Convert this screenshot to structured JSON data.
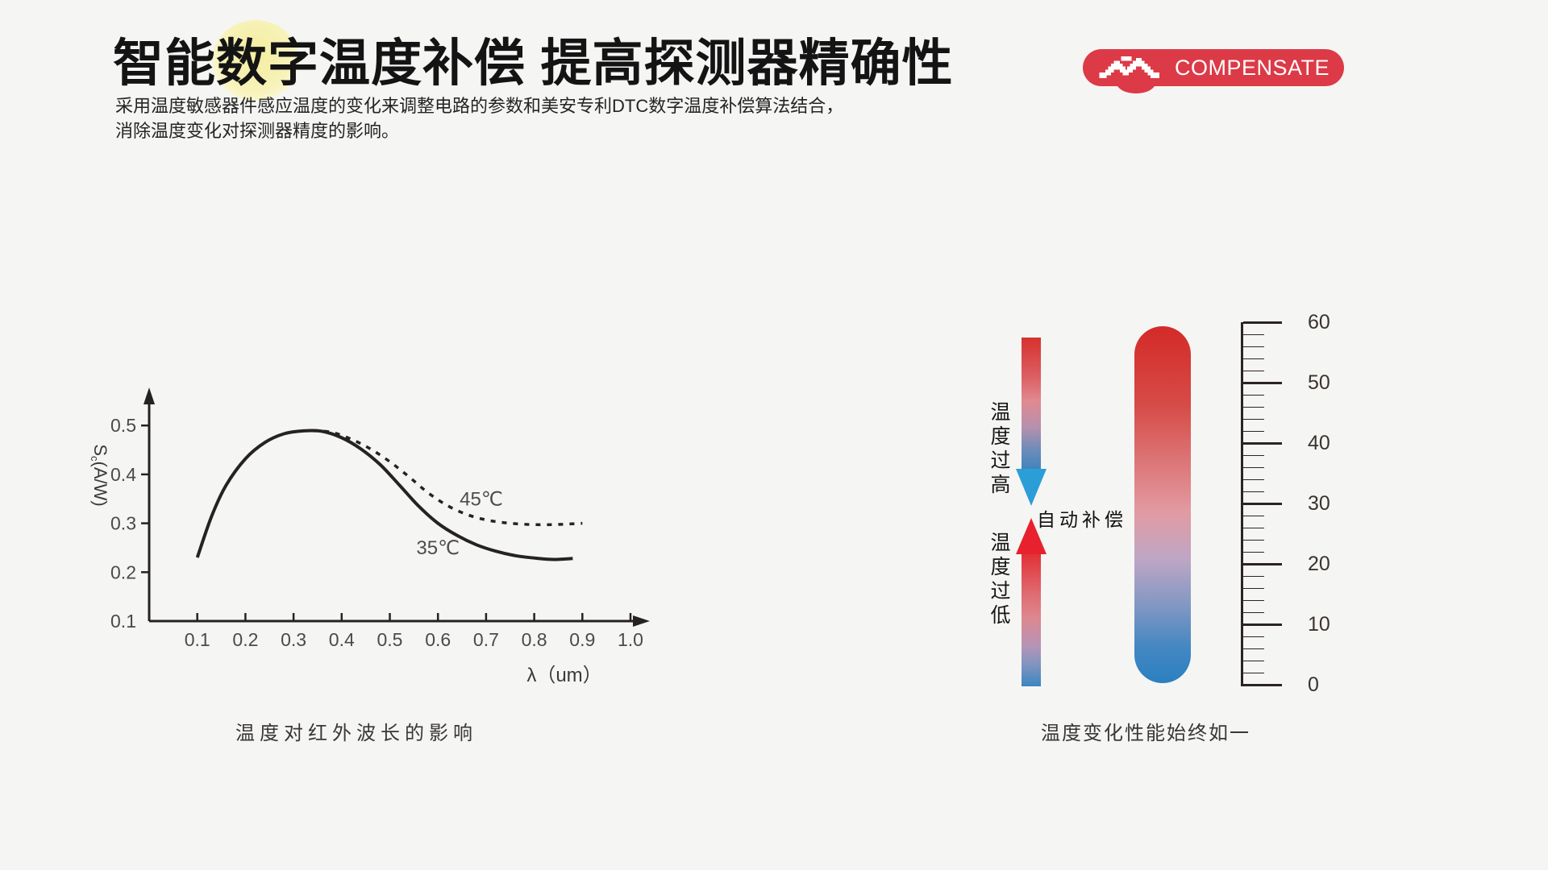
{
  "header": {
    "title_pre": "智能",
    "title_hl": "数字",
    "title_post": "温度补偿 提高探测器精确性",
    "subtitle_line1": "采用温度敏感器件感应温度的变化来调整电路的参数和美安专利DTC数字温度补偿算法结合，",
    "subtitle_line2": "消除温度变化对探测器精度的影响。",
    "badge": {
      "label": "COMPENSATE",
      "color": "#dc3a47",
      "icon": "pixel-wave"
    }
  },
  "chart_data": {
    "type": "line",
    "title": "温度对红外波长的影响",
    "xlabel": "λ（um）",
    "ylabel": "Sc(A/W)",
    "ylabel_sub": "c",
    "xlim": [
      0,
      1.05
    ],
    "ylim": [
      0.1,
      0.55
    ],
    "x_ticks": [
      "0.1",
      "0.2",
      "0.3",
      "0.4",
      "0.5",
      "0.6",
      "0.7",
      "0.8",
      "0.9",
      "1.0"
    ],
    "y_ticks": [
      "0.1",
      "0.2",
      "0.3",
      "0.4",
      "0.5"
    ],
    "axis_color": "#262223",
    "grid": "off",
    "series": [
      {
        "name": "35℃",
        "style": "solid",
        "label_at": [
          0.6,
          0.25
        ],
        "points": [
          [
            0.1,
            0.23
          ],
          [
            0.13,
            0.315
          ],
          [
            0.16,
            0.378
          ],
          [
            0.2,
            0.432
          ],
          [
            0.24,
            0.465
          ],
          [
            0.28,
            0.483
          ],
          [
            0.32,
            0.489
          ],
          [
            0.36,
            0.488
          ],
          [
            0.4,
            0.475
          ],
          [
            0.44,
            0.452
          ],
          [
            0.48,
            0.42
          ],
          [
            0.52,
            0.378
          ],
          [
            0.56,
            0.335
          ],
          [
            0.6,
            0.3
          ],
          [
            0.64,
            0.275
          ],
          [
            0.68,
            0.256
          ],
          [
            0.72,
            0.243
          ],
          [
            0.76,
            0.234
          ],
          [
            0.8,
            0.229
          ],
          [
            0.84,
            0.226
          ],
          [
            0.88,
            0.228
          ]
        ]
      },
      {
        "name": "45℃",
        "style": "dashed",
        "label_at": [
          0.69,
          0.35
        ],
        "points": [
          [
            0.34,
            0.49
          ],
          [
            0.38,
            0.486
          ],
          [
            0.42,
            0.472
          ],
          [
            0.46,
            0.452
          ],
          [
            0.5,
            0.426
          ],
          [
            0.54,
            0.395
          ],
          [
            0.58,
            0.362
          ],
          [
            0.62,
            0.336
          ],
          [
            0.66,
            0.318
          ],
          [
            0.7,
            0.307
          ],
          [
            0.74,
            0.301
          ],
          [
            0.78,
            0.298
          ],
          [
            0.82,
            0.297
          ],
          [
            0.86,
            0.298
          ],
          [
            0.9,
            0.3
          ]
        ]
      }
    ]
  },
  "thermometer": {
    "label_high": "温度过高",
    "label_low": "温度过低",
    "label_auto": "自动补偿",
    "caption": "温度变化性能始终如一",
    "scale": {
      "labels": [
        "60",
        "50",
        "40",
        "30",
        "20",
        "10",
        "0"
      ],
      "major_step": 10,
      "minors_per_interval": 4
    },
    "colors": {
      "hot_red": "#d7312e",
      "cold_blue": "#2b80c0",
      "arrow_down_blue": "#2b9ed8",
      "arrow_up_red": "#e7212d"
    }
  }
}
